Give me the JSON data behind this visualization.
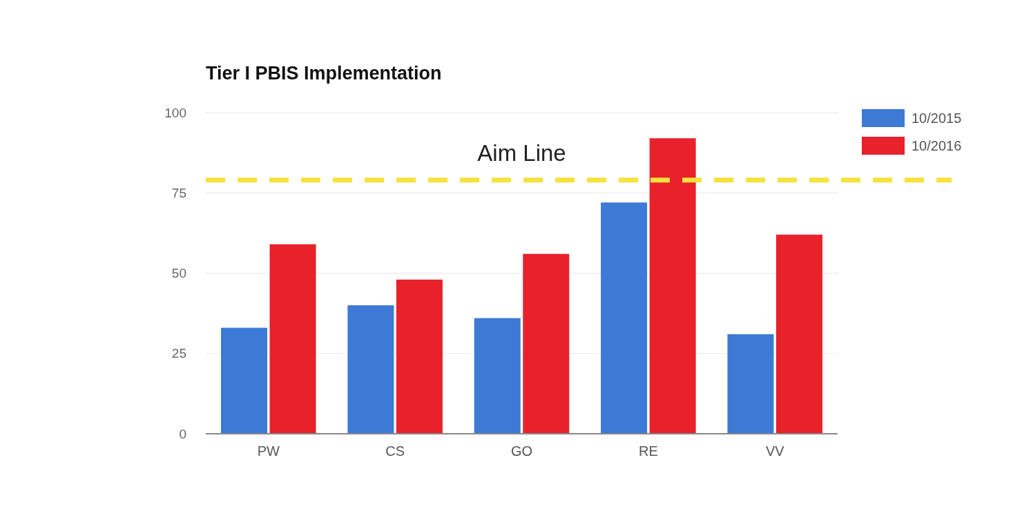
{
  "chart_data": {
    "type": "bar",
    "title": "Tier I PBIS Implementation",
    "categories": [
      "PW",
      "CS",
      "GO",
      "RE",
      "VV"
    ],
    "series": [
      {
        "name": "10/2015",
        "color": "#3d7ad6",
        "values": [
          33,
          40,
          36,
          72,
          31
        ]
      },
      {
        "name": "10/2016",
        "color": "#e8212b",
        "values": [
          59,
          48,
          56,
          92,
          62
        ]
      }
    ],
    "ylim": [
      0,
      100
    ],
    "yticks": [
      0,
      25,
      50,
      75,
      100
    ],
    "grid": "y",
    "legend": "top right",
    "ref_lines": [
      {
        "axis": "y",
        "value": 79,
        "label": "Aim Line",
        "color": "#f7e13c",
        "line_style": "dashed"
      }
    ]
  }
}
